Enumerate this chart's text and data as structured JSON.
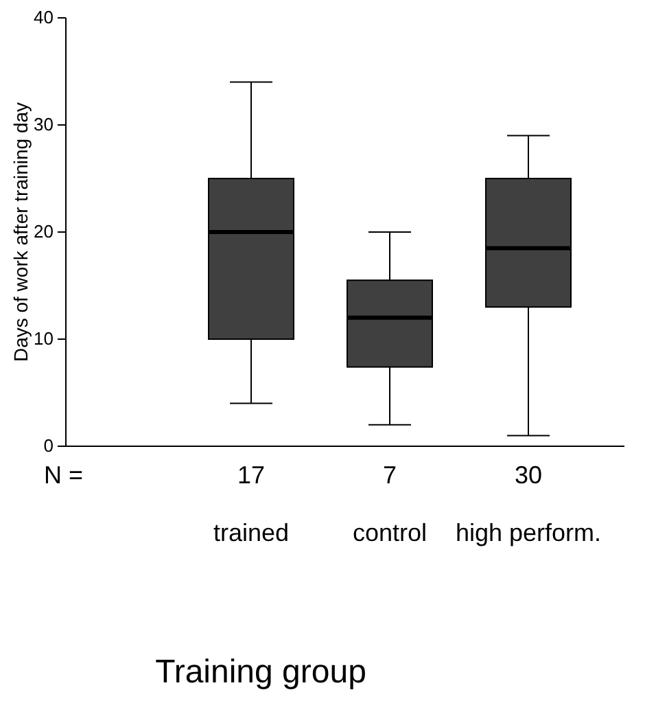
{
  "chart_data": {
    "type": "box",
    "xlabel": "Training group",
    "ylabel": "Days of work after training day",
    "categories": [
      "trained",
      "control",
      "high perform."
    ],
    "color": "#404040",
    "boxes": [
      {
        "low": 4,
        "q1": 10,
        "median": 20,
        "q3": 25,
        "high": 34
      },
      {
        "low": 2,
        "q1": 7.4,
        "median": 12,
        "q3": 15.5,
        "high": 20
      },
      {
        "low": 1,
        "q1": 13,
        "median": 18.5,
        "q3": 25,
        "high": 29
      }
    ],
    "ylim": [
      0,
      40
    ],
    "yticks": [
      0,
      10,
      20,
      30,
      40
    ],
    "annotations": [
      "N =",
      "17",
      "7",
      "30"
    ]
  }
}
